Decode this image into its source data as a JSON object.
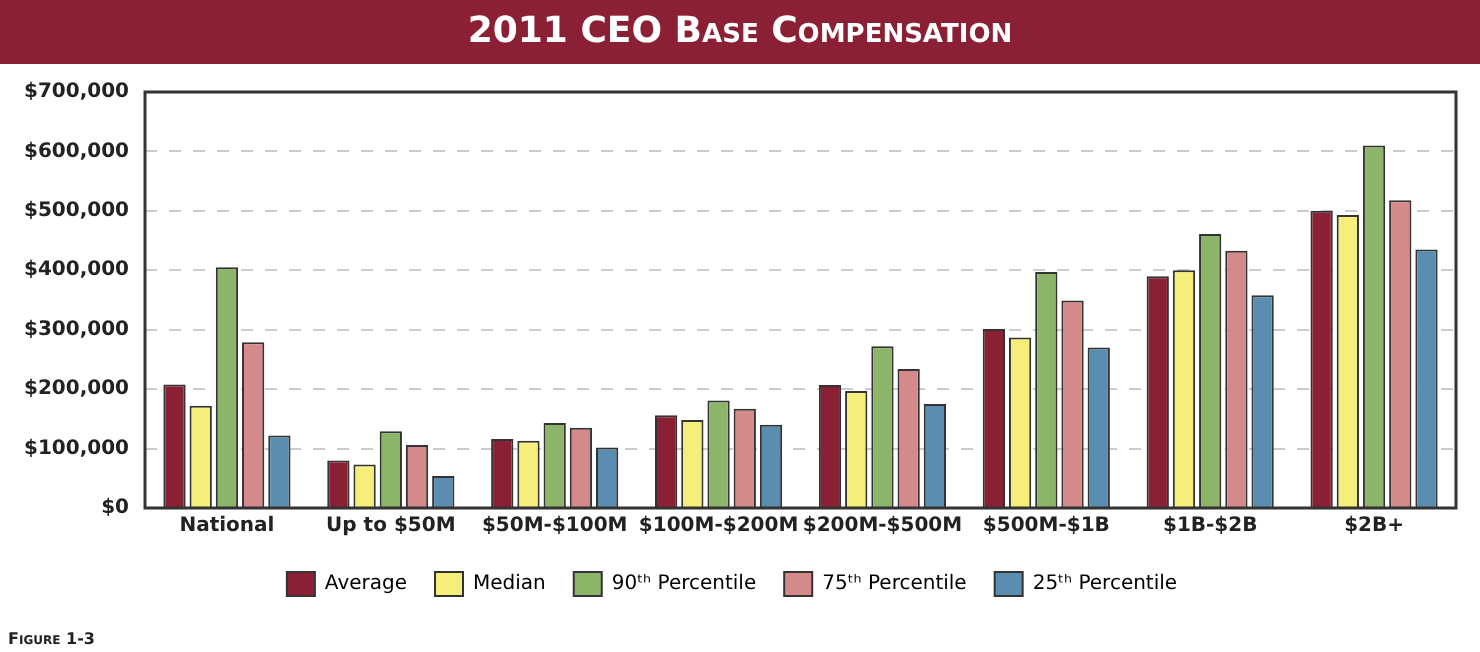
{
  "chart_data": {
    "type": "bar",
    "title": "2011 CEO Base Compensation",
    "categories": [
      "National",
      "Up to $50M",
      "$50M-$100M",
      "$100M-$200M",
      "$200M-$500M",
      "$500M-$1B",
      "$1B-$2B",
      "$2B+"
    ],
    "series": [
      {
        "name": "Average",
        "color": "#8b2035",
        "values": [
          208000,
          80000,
          116000,
          156000,
          207000,
          301000,
          390000,
          500000
        ]
      },
      {
        "name": "Median",
        "color": "#f5ee7a",
        "values": [
          172000,
          73000,
          113000,
          148000,
          197000,
          287000,
          400000,
          493000
        ]
      },
      {
        "name": "90ᵗʰ Percentile",
        "color": "#8db56a",
        "values": [
          405000,
          129000,
          143000,
          181000,
          272000,
          397000,
          461000,
          610000
        ]
      },
      {
        "name": "75ᵗʰ Percentile",
        "color": "#d48a8a",
        "values": [
          279000,
          106000,
          135000,
          167000,
          234000,
          349000,
          433000,
          518000
        ]
      },
      {
        "name": "25ᵗʰ Percentile",
        "color": "#5b8db0",
        "values": [
          122000,
          54000,
          102000,
          140000,
          175000,
          270000,
          358000,
          435000
        ]
      }
    ],
    "ylim": [
      0,
      700000
    ],
    "yticks": [
      {
        "value": 0,
        "label": "$0"
      },
      {
        "value": 100000,
        "label": "$100,000"
      },
      {
        "value": 200000,
        "label": "$200,000"
      },
      {
        "value": 300000,
        "label": "$300,000"
      },
      {
        "value": 400000,
        "label": "$400,000"
      },
      {
        "value": 500000,
        "label": "$500,000"
      },
      {
        "value": 600000,
        "label": "$600,000"
      },
      {
        "value": 700000,
        "label": "$700,000"
      }
    ],
    "grid": "y",
    "legend": "bottom",
    "annotations": [
      "Figure 1-3"
    ]
  }
}
